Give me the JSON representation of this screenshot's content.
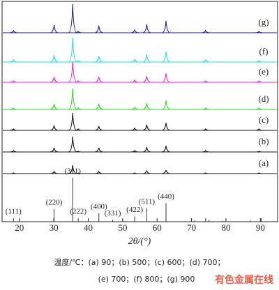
{
  "chart_data": {
    "type": "line",
    "x_label": "2θ/(°)",
    "xlim": [
      15,
      95
    ],
    "xticks": [
      20,
      30,
      40,
      50,
      60,
      70,
      80,
      90
    ],
    "x": [
      18.3,
      30.1,
      35.5,
      37.1,
      43.1,
      53.5,
      57.0,
      62.6,
      74.1,
      89.6
    ],
    "series": [
      {
        "name": "(a)",
        "color": "#111111",
        "values": [
          1,
          3,
          12,
          1,
          3,
          1,
          4,
          5,
          1,
          1
        ]
      },
      {
        "name": "(b)",
        "color": "#111111",
        "values": [
          2,
          6,
          22,
          1,
          6,
          2,
          7,
          9,
          2,
          1
        ]
      },
      {
        "name": "(c)",
        "color": "#111111",
        "values": [
          2,
          7,
          25,
          2,
          6,
          3,
          8,
          11,
          2,
          2
        ]
      },
      {
        "name": "(d)",
        "color": "#22dd22",
        "values": [
          2,
          8,
          30,
          2,
          8,
          3,
          9,
          13,
          2,
          2
        ]
      },
      {
        "name": "(e)",
        "color": "#ee22ee",
        "values": [
          2,
          8,
          30,
          2,
          8,
          3,
          9,
          13,
          2,
          2
        ]
      },
      {
        "name": "(f)",
        "color": "#22e0e0",
        "values": [
          3,
          10,
          35,
          2,
          9,
          4,
          11,
          15,
          3,
          2
        ]
      },
      {
        "name": "(g)",
        "color": "#1a1a99",
        "values": [
          3,
          11,
          41,
          2,
          10,
          4,
          12,
          17,
          3,
          2
        ]
      }
    ],
    "reference": {
      "color": "#333333",
      "x": [
        18.3,
        30.1,
        35.5,
        37.1,
        43.1,
        47.1,
        53.5,
        57.0,
        62.6,
        71.0,
        74.1,
        75.1,
        79.1,
        87.1,
        90.2
      ],
      "values": [
        8,
        29,
        100,
        8,
        19,
        4,
        12,
        30,
        42,
        3,
        8,
        4,
        2,
        3,
        8
      ],
      "labels": [
        "(111)",
        "(220)",
        "(311)",
        "(222)",
        "(400)",
        "(331)",
        "(422)",
        "(511)",
        "(440)",
        null,
        null,
        null,
        null,
        null,
        null
      ]
    },
    "caption": [
      "温度/℃：(a) 90；(b) 500；(c) 600；(d) 700；",
      "(e) 700；(f) 800；(g) 900"
    ],
    "watermark": "有色金属在线"
  }
}
